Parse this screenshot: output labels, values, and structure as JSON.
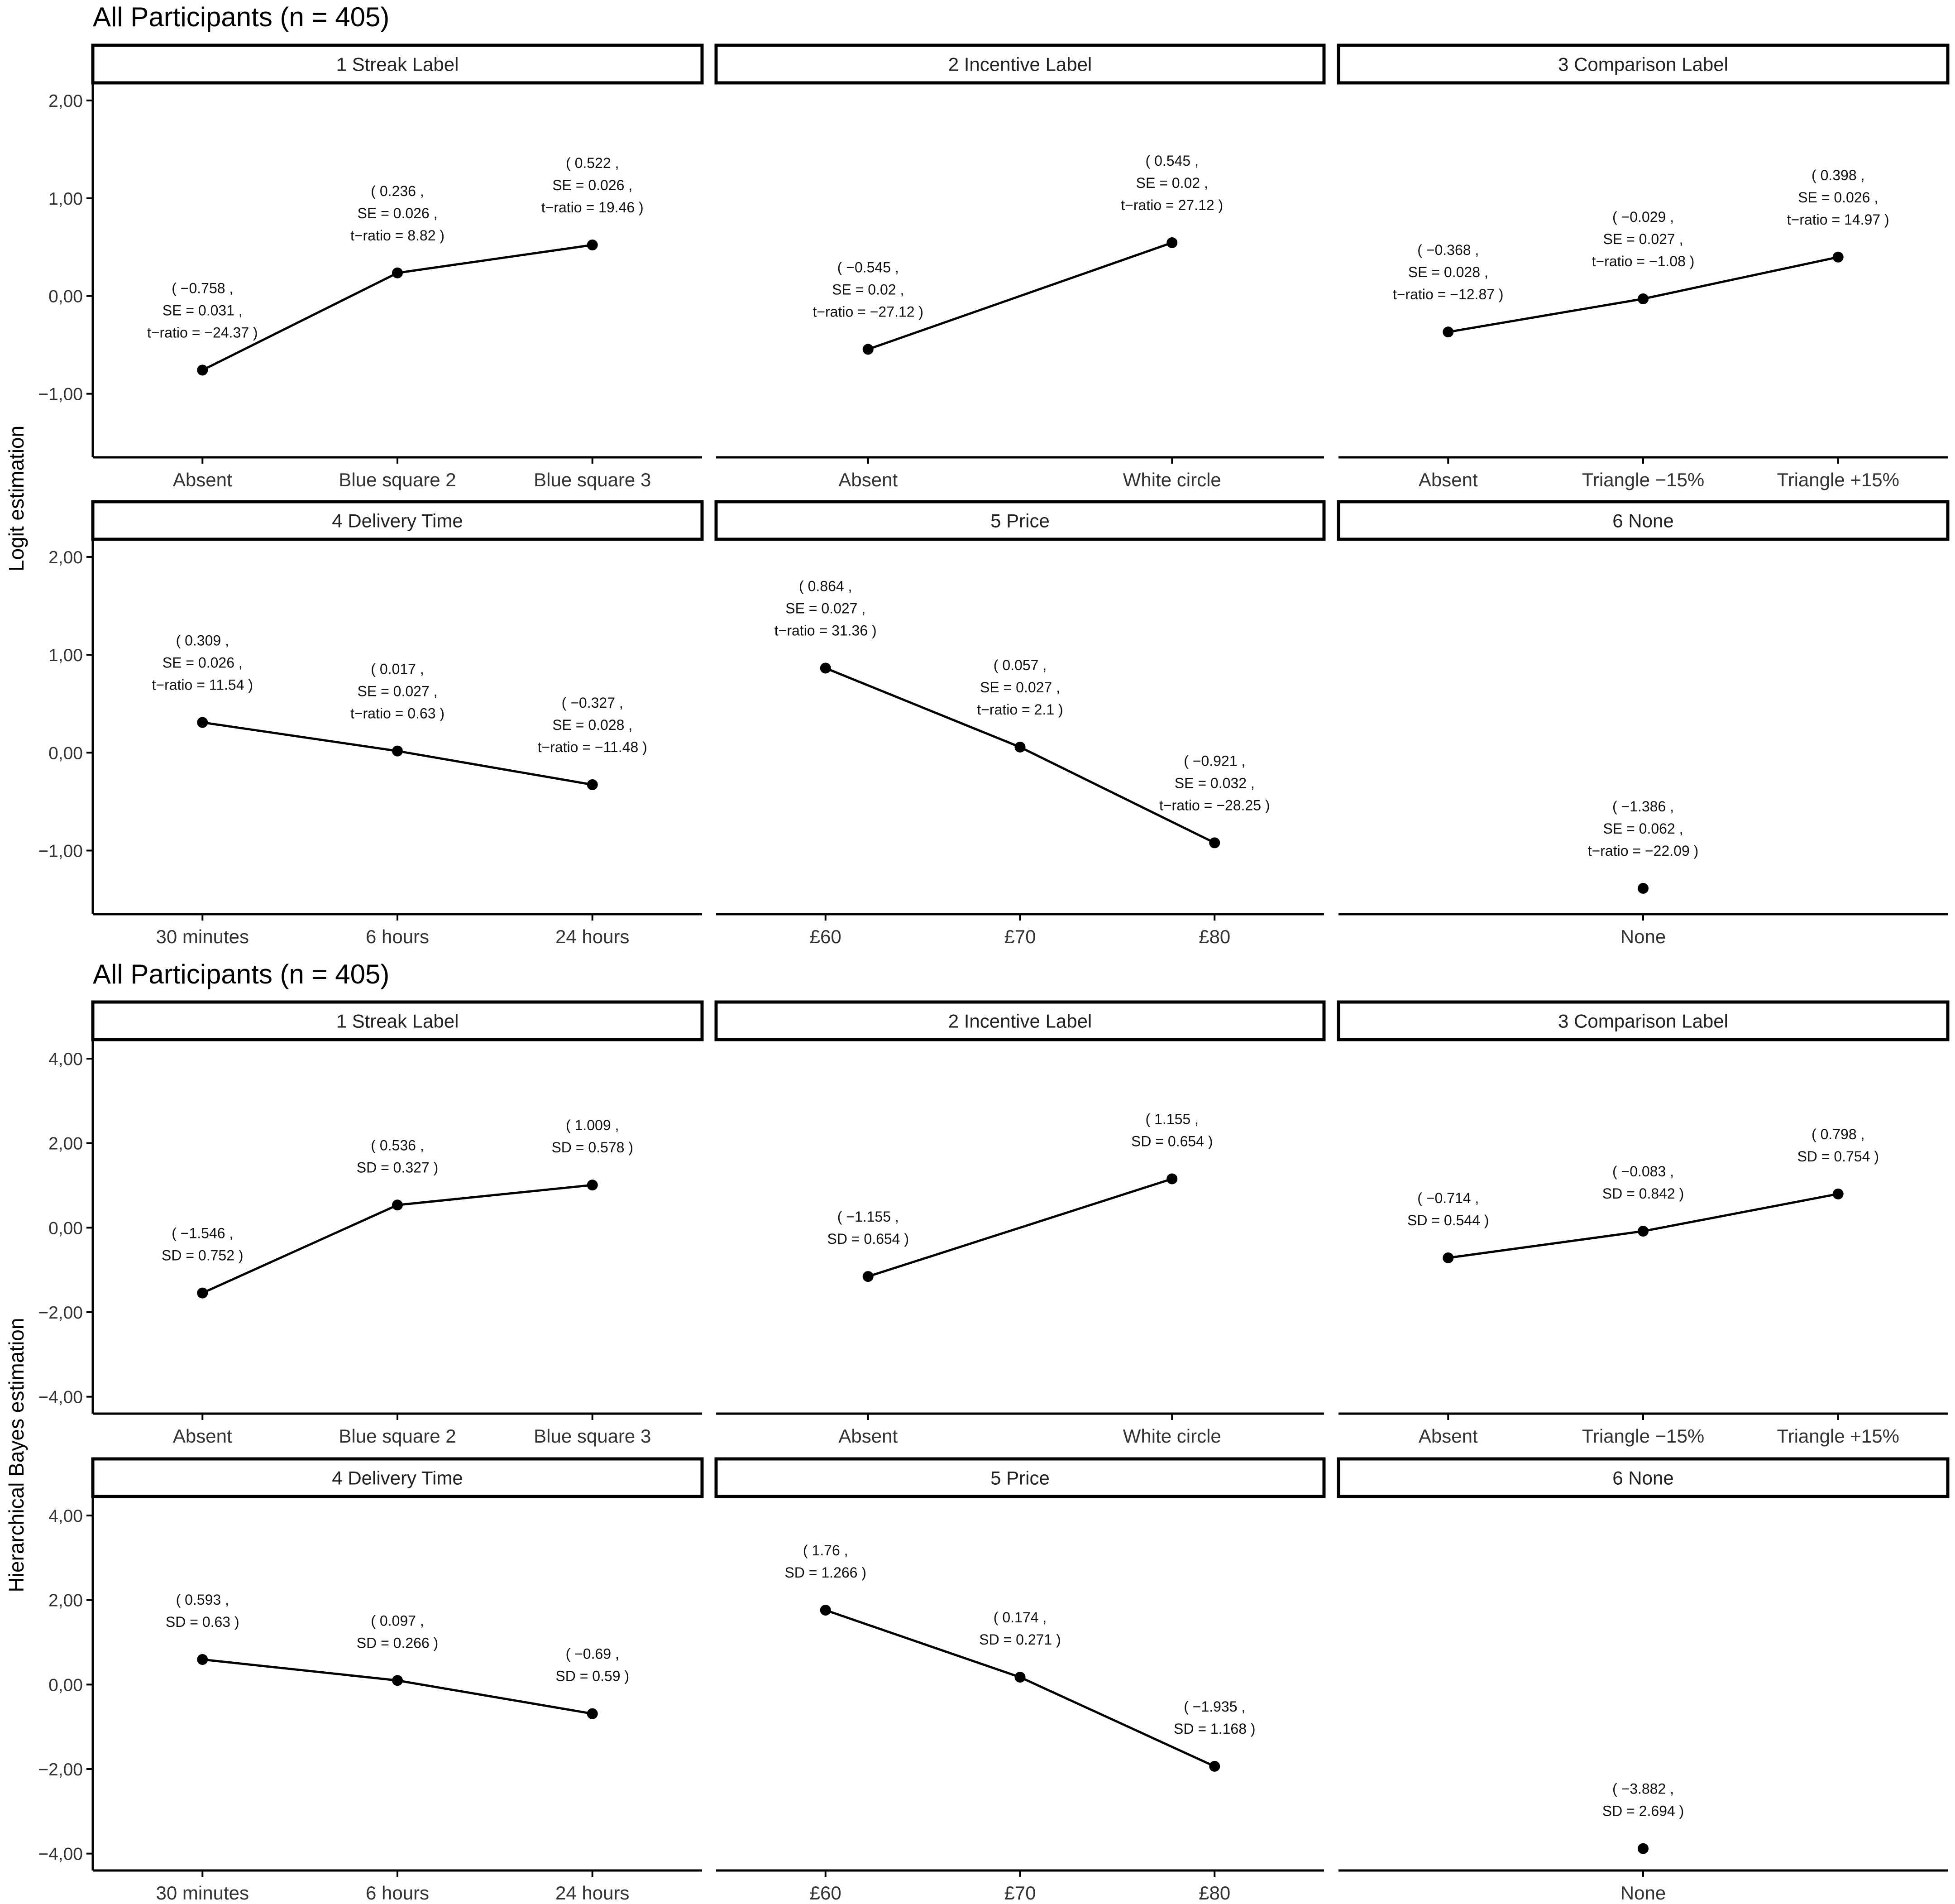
{
  "chart_data": [
    {
      "type": "line",
      "title": "All Participants (n = 405)",
      "ylabel": "Logit estimation",
      "ylim": [
        -1.65,
        2.18
      ],
      "yticks": [
        -1,
        0,
        1,
        2
      ],
      "ytick_labels": [
        "−1,00",
        "0,00",
        "1,00",
        "2,00"
      ],
      "grid": false,
      "facets": [
        {
          "strip": "1 Streak Label",
          "categories": [
            "Absent",
            "Blue square 2",
            "Blue square 3"
          ],
          "values": [
            -0.758,
            0.236,
            0.522
          ],
          "annotations": [
            [
              "( −0.758 ,",
              "SE = 0.031 ,",
              "t−ratio = −24.37 )"
            ],
            [
              "( 0.236 ,",
              "SE = 0.026 ,",
              "t−ratio = 8.82 )"
            ],
            [
              "( 0.522 ,",
              "SE = 0.026 ,",
              "t−ratio = 19.46 )"
            ]
          ]
        },
        {
          "strip": "2 Incentive Label",
          "categories": [
            "Absent",
            "White circle"
          ],
          "values": [
            -0.545,
            0.545
          ],
          "annotations": [
            [
              "( −0.545 ,",
              "SE = 0.02 ,",
              "t−ratio = −27.12 )"
            ],
            [
              "( 0.545 ,",
              "SE = 0.02 ,",
              "t−ratio = 27.12 )"
            ]
          ]
        },
        {
          "strip": "3 Comparison Label",
          "categories": [
            "Absent",
            "Triangle −15%",
            "Triangle +15%"
          ],
          "values": [
            -0.368,
            -0.029,
            0.398
          ],
          "annotations": [
            [
              "( −0.368 ,",
              "SE = 0.028 ,",
              "t−ratio = −12.87 )"
            ],
            [
              "( −0.029 ,",
              "SE = 0.027 ,",
              "t−ratio = −1.08 )"
            ],
            [
              "( 0.398 ,",
              "SE = 0.026 ,",
              "t−ratio = 14.97 )"
            ]
          ]
        },
        {
          "strip": "4 Delivery Time",
          "categories": [
            "30 minutes",
            "6 hours",
            "24 hours"
          ],
          "values": [
            0.309,
            0.017,
            -0.327
          ],
          "annotations": [
            [
              "( 0.309 ,",
              "SE = 0.026 ,",
              "t−ratio = 11.54 )"
            ],
            [
              "( 0.017 ,",
              "SE = 0.027 ,",
              "t−ratio = 0.63 )"
            ],
            [
              "( −0.327 ,",
              "SE = 0.028 ,",
              "t−ratio = −11.48 )"
            ]
          ]
        },
        {
          "strip": "5 Price",
          "categories": [
            "£60",
            "£70",
            "£80"
          ],
          "values": [
            0.864,
            0.057,
            -0.921
          ],
          "annotations": [
            [
              "( 0.864 ,",
              "SE = 0.027 ,",
              "t−ratio = 31.36 )"
            ],
            [
              "( 0.057 ,",
              "SE = 0.027 ,",
              "t−ratio = 2.1 )"
            ],
            [
              "( −0.921 ,",
              "SE = 0.032 ,",
              "t−ratio = −28.25 )"
            ]
          ]
        },
        {
          "strip": "6 None",
          "categories": [
            "None"
          ],
          "values": [
            -1.386
          ],
          "annotations": [
            [
              "( −1.386 ,",
              "SE = 0.062 ,",
              "t−ratio = −22.09 )"
            ]
          ]
        }
      ]
    },
    {
      "type": "line",
      "title": "All Participants (n = 405)",
      "ylabel": "Hierarchical Bayes estimation",
      "ylim": [
        -4.4,
        4.45
      ],
      "yticks": [
        -4,
        -2,
        0,
        2,
        4
      ],
      "ytick_labels": [
        "−4,00",
        "−2,00",
        "0,00",
        "2,00",
        "4,00"
      ],
      "grid": false,
      "facets": [
        {
          "strip": "1 Streak Label",
          "categories": [
            "Absent",
            "Blue square 2",
            "Blue square 3"
          ],
          "values": [
            -1.546,
            0.536,
            1.009
          ],
          "annotations": [
            [
              "( −1.546 ,",
              "SD = 0.752 )"
            ],
            [
              "( 0.536 ,",
              "SD = 0.327 )"
            ],
            [
              "( 1.009 ,",
              "SD = 0.578 )"
            ]
          ]
        },
        {
          "strip": "2 Incentive Label",
          "categories": [
            "Absent",
            "White circle"
          ],
          "values": [
            -1.155,
            1.155
          ],
          "annotations": [
            [
              "( −1.155 ,",
              "SD = 0.654 )"
            ],
            [
              "( 1.155 ,",
              "SD = 0.654 )"
            ]
          ]
        },
        {
          "strip": "3 Comparison Label",
          "categories": [
            "Absent",
            "Triangle −15%",
            "Triangle +15%"
          ],
          "values": [
            -0.714,
            -0.083,
            0.798
          ],
          "annotations": [
            [
              "( −0.714 ,",
              "SD = 0.544 )"
            ],
            [
              "( −0.083 ,",
              "SD = 0.842 )"
            ],
            [
              "( 0.798 ,",
              "SD = 0.754 )"
            ]
          ]
        },
        {
          "strip": "4 Delivery Time",
          "categories": [
            "30 minutes",
            "6 hours",
            "24 hours"
          ],
          "values": [
            0.593,
            0.097,
            -0.69
          ],
          "annotations": [
            [
              "( 0.593 ,",
              "SD = 0.63 )"
            ],
            [
              "( 0.097 ,",
              "SD = 0.266 )"
            ],
            [
              "( −0.69 ,",
              "SD = 0.59 )"
            ]
          ]
        },
        {
          "strip": "5 Price",
          "categories": [
            "£60",
            "£70",
            "£80"
          ],
          "values": [
            1.76,
            0.174,
            -1.935
          ],
          "annotations": [
            [
              "( 1.76 ,",
              "SD = 1.266 )"
            ],
            [
              "( 0.174 ,",
              "SD = 0.271 )"
            ],
            [
              "( −1.935 ,",
              "SD = 1.168 )"
            ]
          ]
        },
        {
          "strip": "6 None",
          "categories": [
            "None"
          ],
          "values": [
            -3.882
          ],
          "annotations": [
            [
              "( −3.882 ,",
              "SD = 2.694 )"
            ]
          ]
        }
      ]
    }
  ]
}
